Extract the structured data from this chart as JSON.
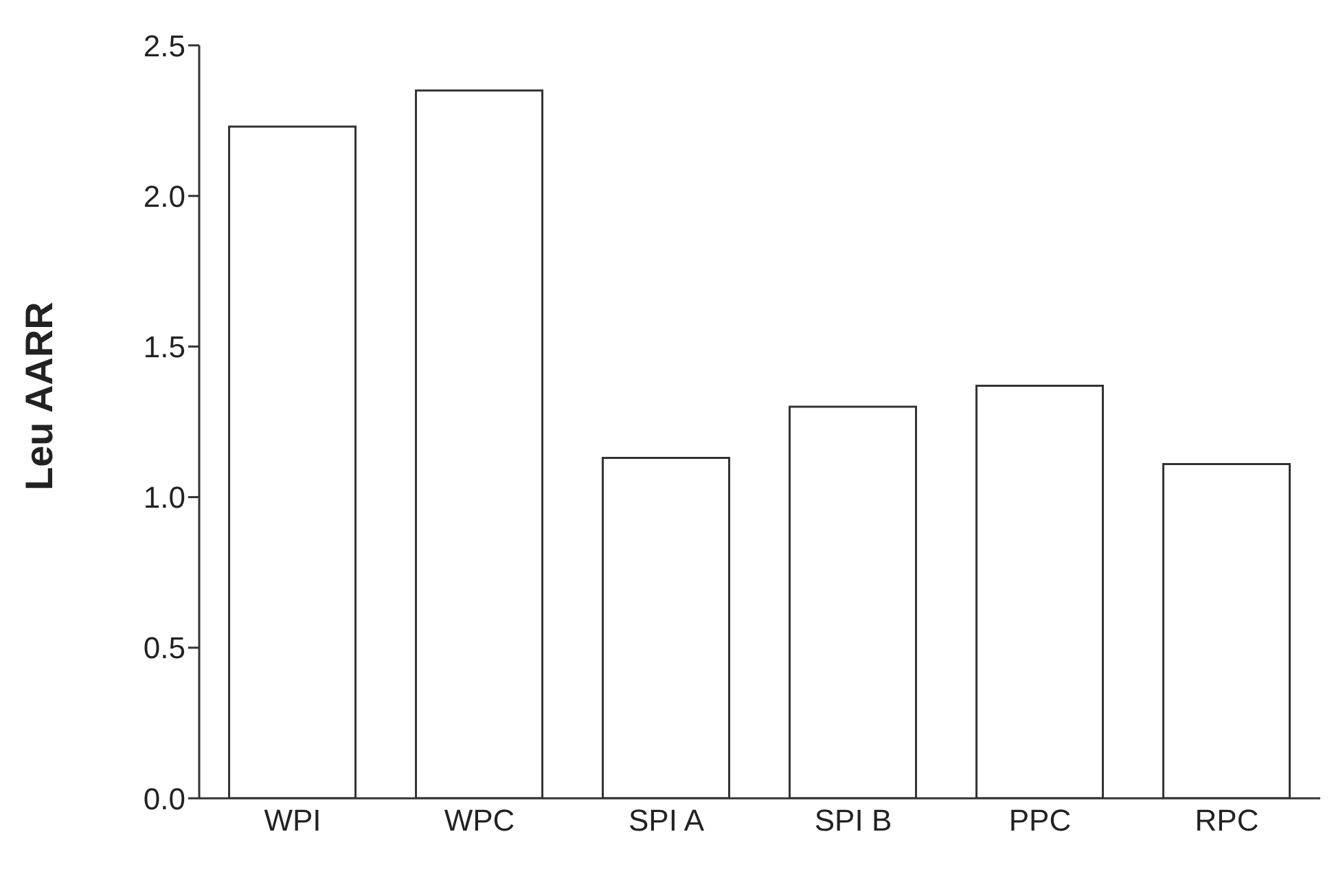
{
  "chart_data": {
    "type": "bar",
    "ylabel": "Leu AARR",
    "categories": [
      "WPI",
      "WPC",
      "SPI A",
      "SPI B",
      "PPC",
      "RPC"
    ],
    "values": [
      2.23,
      2.35,
      1.13,
      1.3,
      1.37,
      1.11
    ],
    "color": "#ffffff",
    "ylim": [
      0,
      2.5
    ],
    "yticks": [
      {
        "value": 0,
        "label": "0.0"
      },
      {
        "value": 0.5,
        "label": "0.5"
      },
      {
        "value": 1,
        "label": "1.0"
      },
      {
        "value": 1.5,
        "label": "1.5"
      },
      {
        "value": 2,
        "label": "2.0"
      },
      {
        "value": 2.5,
        "label": "2.5"
      }
    ],
    "grid": false
  }
}
